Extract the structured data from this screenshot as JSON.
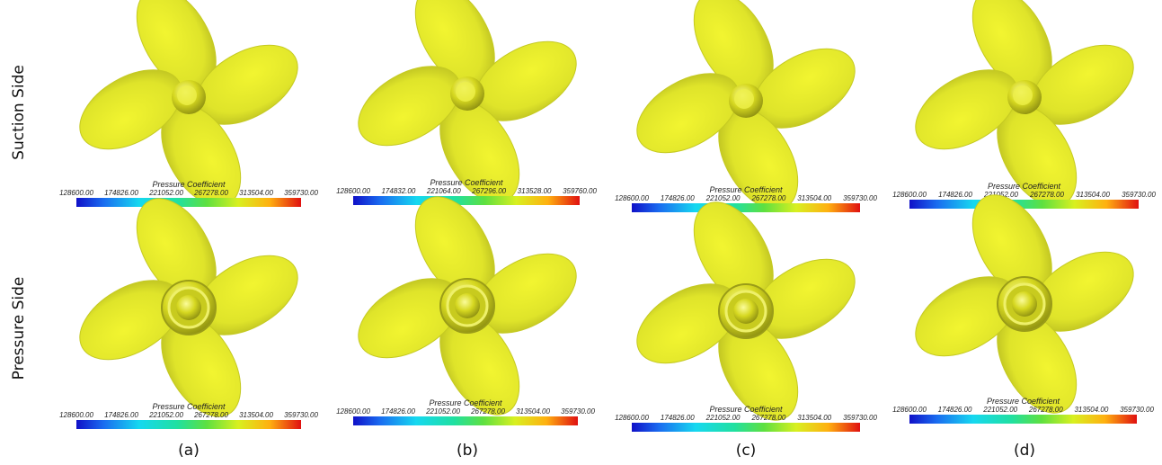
{
  "rows": [
    "Suction Side",
    "Pressure Side"
  ],
  "columns": [
    "(a)",
    "(b)",
    "(c)",
    "(d)"
  ],
  "panels": [
    {
      "title": "Pressure Coefficient",
      "ticks": [
        "128600.00",
        "174826.00",
        "221052.00",
        "267278.00",
        "313504.00",
        "359730.00"
      ]
    },
    {
      "title": "Pressure Coefficient",
      "ticks": [
        "128600.00",
        "174832.00",
        "221064.00",
        "267296.00",
        "313528.00",
        "359760.00"
      ]
    },
    {
      "title": "Pressure Coefficient",
      "ticks": [
        "128600.00",
        "174826.00",
        "221052.00",
        "267278.00",
        "313504.00",
        "359730.00"
      ]
    },
    {
      "title": "Pressure Coefficient",
      "ticks": [
        "128600.00",
        "174826.00",
        "221052.00",
        "267278.00",
        "313504.00",
        "359730.00"
      ]
    },
    {
      "title": "Pressure Coefficient",
      "ticks": [
        "128600.00",
        "174826.00",
        "221052.00",
        "267278.00",
        "313504.00",
        "359730.00"
      ]
    },
    {
      "title": "Pressure Coefficient",
      "ticks": [
        "128600.00",
        "174826.00",
        "221052.00",
        "267278.00",
        "313504.00",
        "359730.00"
      ]
    },
    {
      "title": "Pressure Coefficient",
      "ticks": [
        "128600.00",
        "174826.00",
        "221052.00",
        "267278.00",
        "313504.00",
        "359730.00"
      ]
    },
    {
      "title": "Pressure Coefficient",
      "ticks": [
        "128600.00",
        "174826.00",
        "221052.00",
        "267278.00",
        "313504.00",
        "359730.00"
      ]
    }
  ]
}
